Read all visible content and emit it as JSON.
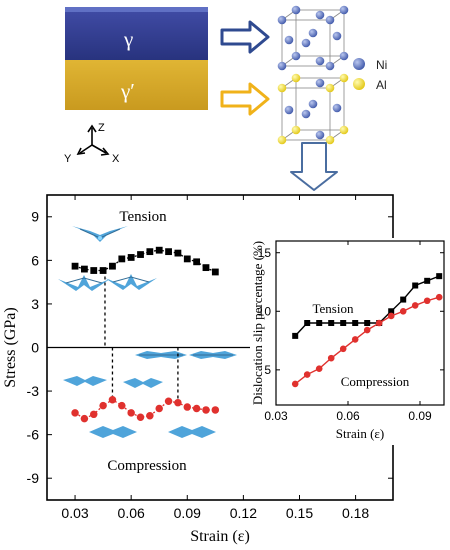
{
  "schematic": {
    "gamma_label": "γ",
    "gamma_prime_label": "γ′",
    "legend": [
      {
        "label": "Ni",
        "color": "#4a63b5"
      },
      {
        "label": "Al",
        "color": "#f2e21a"
      }
    ],
    "axes_labels": {
      "z": "Z",
      "y": "Y",
      "x": "X"
    },
    "colors": {
      "gamma": "#2e3a8f",
      "gamma_prime": "#d8a928",
      "arrow_blue": "#2f4a90",
      "arrow_yellow": "#f0b21a",
      "down_arrow": "#4a6da0"
    }
  },
  "chart_data": [
    {
      "type": "line",
      "xlabel": "Strain (ε)",
      "ylabel": "Stress (GPa)",
      "xlim": [
        0.015,
        0.2
      ],
      "ylim": [
        -10.5,
        10.5
      ],
      "xticks": [
        0.03,
        0.06,
        0.09,
        0.12,
        0.15,
        0.18
      ],
      "xtick_labels": [
        "0.03",
        "0.06",
        "0.09",
        "0.12",
        "0.15",
        "0.18"
      ],
      "yticks": [
        -9,
        -6,
        -3,
        0,
        3,
        6,
        9
      ],
      "ytick_labels": [
        "-9",
        "-6",
        "-3",
        "0",
        "3",
        "6",
        "9"
      ],
      "annotations": [
        "Tension",
        "Compression"
      ],
      "series": [
        {
          "color": "#000000",
          "marker": "square",
          "x": [
            0.03,
            0.035,
            0.04,
            0.045,
            0.05,
            0.055,
            0.06,
            0.065,
            0.07,
            0.075,
            0.08,
            0.085,
            0.09,
            0.095,
            0.1,
            0.105
          ],
          "y": [
            5.6,
            5.4,
            5.3,
            5.3,
            5.6,
            6.1,
            6.2,
            6.4,
            6.6,
            6.7,
            6.6,
            6.5,
            6.1,
            5.9,
            5.5,
            5.2
          ]
        },
        {
          "color": "#e0312e",
          "marker": "circle",
          "x": [
            0.03,
            0.035,
            0.04,
            0.045,
            0.05,
            0.055,
            0.06,
            0.065,
            0.07,
            0.075,
            0.08,
            0.085,
            0.09,
            0.095,
            0.1,
            0.105
          ],
          "y": [
            -4.5,
            -4.9,
            -4.6,
            -4.0,
            -3.6,
            -4.0,
            -4.5,
            -4.8,
            -4.7,
            -4.2,
            -3.7,
            -3.8,
            -4.1,
            -4.2,
            -4.3,
            -4.3
          ]
        }
      ],
      "dashed_markers_x": [
        0.046,
        0.05,
        0.085
      ]
    },
    {
      "type": "line",
      "xlabel": "Strain (ε)",
      "ylabel": "Dislocation slip percentage (%)",
      "xlim": [
        0.03,
        0.1
      ],
      "ylim": [
        2,
        16
      ],
      "xticks": [
        0.03,
        0.06,
        0.09
      ],
      "xtick_labels": [
        "0.03",
        "0.06",
        "0.09"
      ],
      "yticks": [
        5,
        10,
        15
      ],
      "ytick_labels": [
        "5",
        "10",
        "15"
      ],
      "annotations": [
        "Tension",
        "Compression"
      ],
      "series": [
        {
          "color": "#000000",
          "marker": "square",
          "x": [
            0.038,
            0.043,
            0.048,
            0.053,
            0.058,
            0.063,
            0.068,
            0.073,
            0.078,
            0.083,
            0.088,
            0.093,
            0.098
          ],
          "y": [
            7.9,
            9.0,
            9.0,
            9.0,
            9.0,
            9.0,
            9.0,
            9.0,
            10.0,
            11.0,
            12.2,
            12.6,
            13.0
          ]
        },
        {
          "color": "#e0312e",
          "marker": "circle",
          "x": [
            0.038,
            0.043,
            0.048,
            0.053,
            0.058,
            0.063,
            0.068,
            0.073,
            0.078,
            0.083,
            0.088,
            0.093,
            0.098
          ],
          "y": [
            3.8,
            4.6,
            5.1,
            6.0,
            6.8,
            7.6,
            8.4,
            9.0,
            9.6,
            10.0,
            10.5,
            10.9,
            11.2
          ]
        }
      ]
    }
  ]
}
